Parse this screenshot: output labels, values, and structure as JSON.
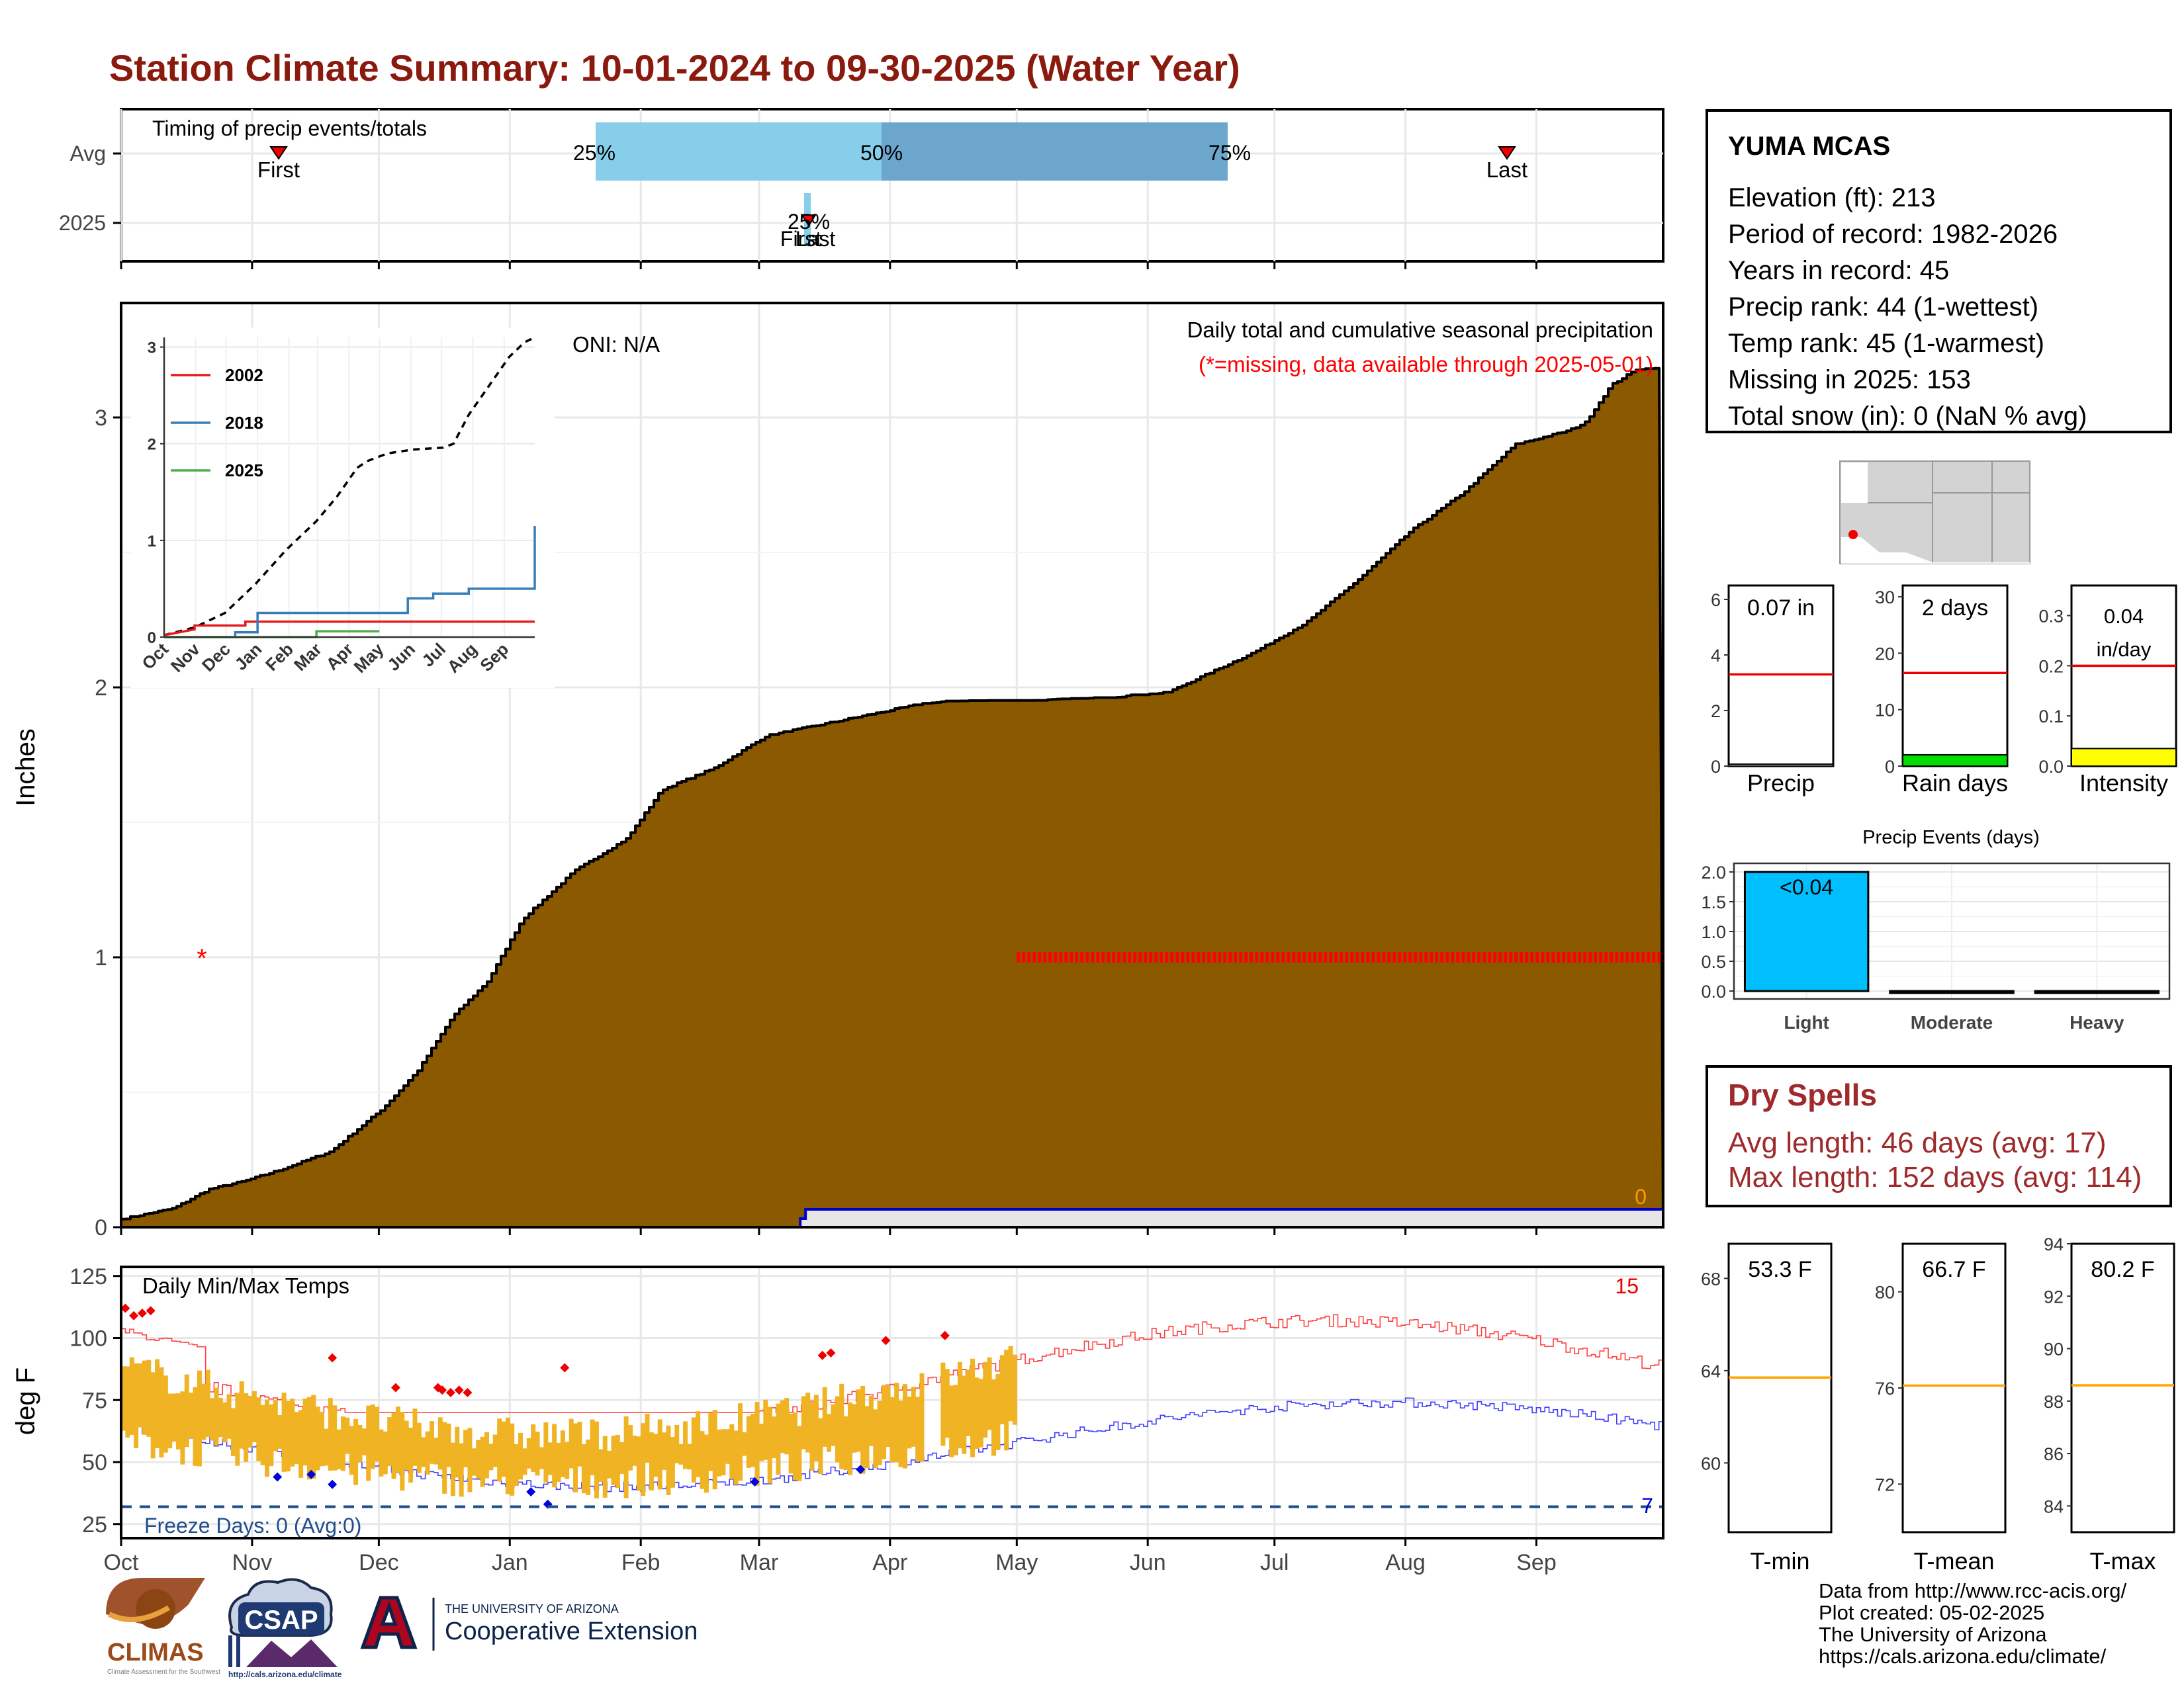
{
  "title": "Station Climate Summary: 10-01-2024 to 09-30-2025 (Water Year)",
  "timing": {
    "label": "Timing of precip events/totals",
    "row_labels": [
      "Avg",
      "2025"
    ],
    "first_label": "First",
    "last_label": "Last",
    "pct_labels": [
      "25%",
      "50%",
      "75%"
    ],
    "overlap_text": "25%",
    "overlap_first": "First",
    "overlap_last": "Last"
  },
  "precip": {
    "ylabel": "Inches",
    "yticks": [
      "0",
      "1",
      "2",
      "3"
    ],
    "oni": "ONI: N/A",
    "heading": "Daily total and cumulative seasonal precipitation",
    "missing_note": "(*=missing, data available through 2025-05-01)",
    "snow_label": "0",
    "missing_marker": "*"
  },
  "inset": {
    "yticks": [
      "0",
      "1",
      "2",
      "3"
    ],
    "months": [
      "Oct",
      "Nov",
      "Dec",
      "Jan",
      "Feb",
      "Mar",
      "Apr",
      "May",
      "Jun",
      "Jul",
      "Aug",
      "Sep"
    ],
    "legend": [
      {
        "name": "2002",
        "color": "#e41a1c"
      },
      {
        "name": "2018",
        "color": "#377eb8"
      },
      {
        "name": "2025",
        "color": "#4daf4a"
      }
    ]
  },
  "temps": {
    "ylabel": "deg F",
    "heading": "Daily Min/Max Temps",
    "yticks": [
      "25",
      "50",
      "75",
      "100",
      "125"
    ],
    "freeze_text": "Freeze Days: 0 (Avg:0)",
    "hot_count": "15",
    "cold_count": "7"
  },
  "months": [
    "Oct",
    "Nov",
    "Dec",
    "Jan",
    "Feb",
    "Mar",
    "Apr",
    "May",
    "Jun",
    "Jul",
    "Aug",
    "Sep"
  ],
  "station": {
    "name": "YUMA MCAS",
    "lines": [
      "Elevation (ft): 213",
      "Period of record: 1982-2026",
      "Years in record: 45",
      "Precip rank: 44 (1-wettest)",
      "Temp rank: 45 (1-warmest)",
      "Missing in 2025: 153",
      "Total snow (in): 0 (NaN % avg)"
    ]
  },
  "mini_precip": [
    {
      "label": "Precip",
      "value_text": "0.07 in",
      "yticks": [
        "0",
        "2",
        "4",
        "6"
      ],
      "ymax": 6.5,
      "avg": 3.3,
      "value": 0.07,
      "fill": "#ffffff"
    },
    {
      "label": "Rain days",
      "value_text": "2 days",
      "yticks": [
        "0",
        "10",
        "20",
        "30"
      ],
      "ymax": 32,
      "avg": 16.5,
      "value": 2,
      "fill": "#00dd00"
    },
    {
      "label": "Intensity",
      "value_text": "0.04",
      "value_text2": "in/day",
      "yticks": [
        "0.0",
        "0.1",
        "0.2",
        "0.3"
      ],
      "ymax": 0.36,
      "avg": 0.2,
      "value": 0.035,
      "fill": "#ffff00"
    }
  ],
  "events": {
    "title": "Precip Events (days)",
    "categories": [
      "Light",
      "Moderate",
      "Heavy"
    ],
    "values": [
      2,
      0,
      0
    ],
    "yticks": [
      "0.0",
      "0.5",
      "1.0",
      "1.5",
      "2.0"
    ],
    "bar_label": "<0.04"
  },
  "dry_spells": {
    "title": "Dry Spells",
    "lines": [
      "Avg length: 46 days (avg: 17)",
      "Max length: 152 days (avg: 114)"
    ]
  },
  "mini_temps": [
    {
      "label": "T-min",
      "value_text": "53.3 F",
      "yticks": [
        "60",
        "64",
        "68"
      ],
      "ymin": 57,
      "ymax": 69.5,
      "avg": 63.7
    },
    {
      "label": "T-mean",
      "value_text": "66.7 F",
      "yticks": [
        "72",
        "76",
        "80"
      ],
      "ymin": 70,
      "ymax": 82,
      "avg": 76.1
    },
    {
      "label": "T-max",
      "value_text": "80.2 F",
      "yticks": [
        "84",
        "86",
        "88",
        "90",
        "92",
        "94"
      ],
      "ymin": 83,
      "ymax": 94,
      "avg": 88.6
    }
  ],
  "logos": {
    "climas": "CLIMAS",
    "climas_sub": "Climate Assessment for the Southwest",
    "csap": "CSAP",
    "csap_url": "http://cals.arizona.edu/climate",
    "ua_small": "THE UNIVERSITY OF ARIZONA",
    "ua_big": "Cooperative Extension"
  },
  "credits": [
    "Data from http://www.rcc-acis.org/",
    "Plot created: 05-02-2025",
    "The University of Arizona",
    "https://cals.arizona.edu/climate/"
  ],
  "colors": {
    "title": "#8b1a0e",
    "precip_fill": "#8b5a00",
    "temp_bar": "#f0b323",
    "max_line": "#ff4040",
    "min_line": "#4040ff",
    "freeze_line": "#1f4e8c",
    "pct_light": "#87ceeb",
    "pct_dark": "#6ca6cd",
    "events_bar": "#00bfff",
    "dry_text": "#9e2a2b"
  }
}
